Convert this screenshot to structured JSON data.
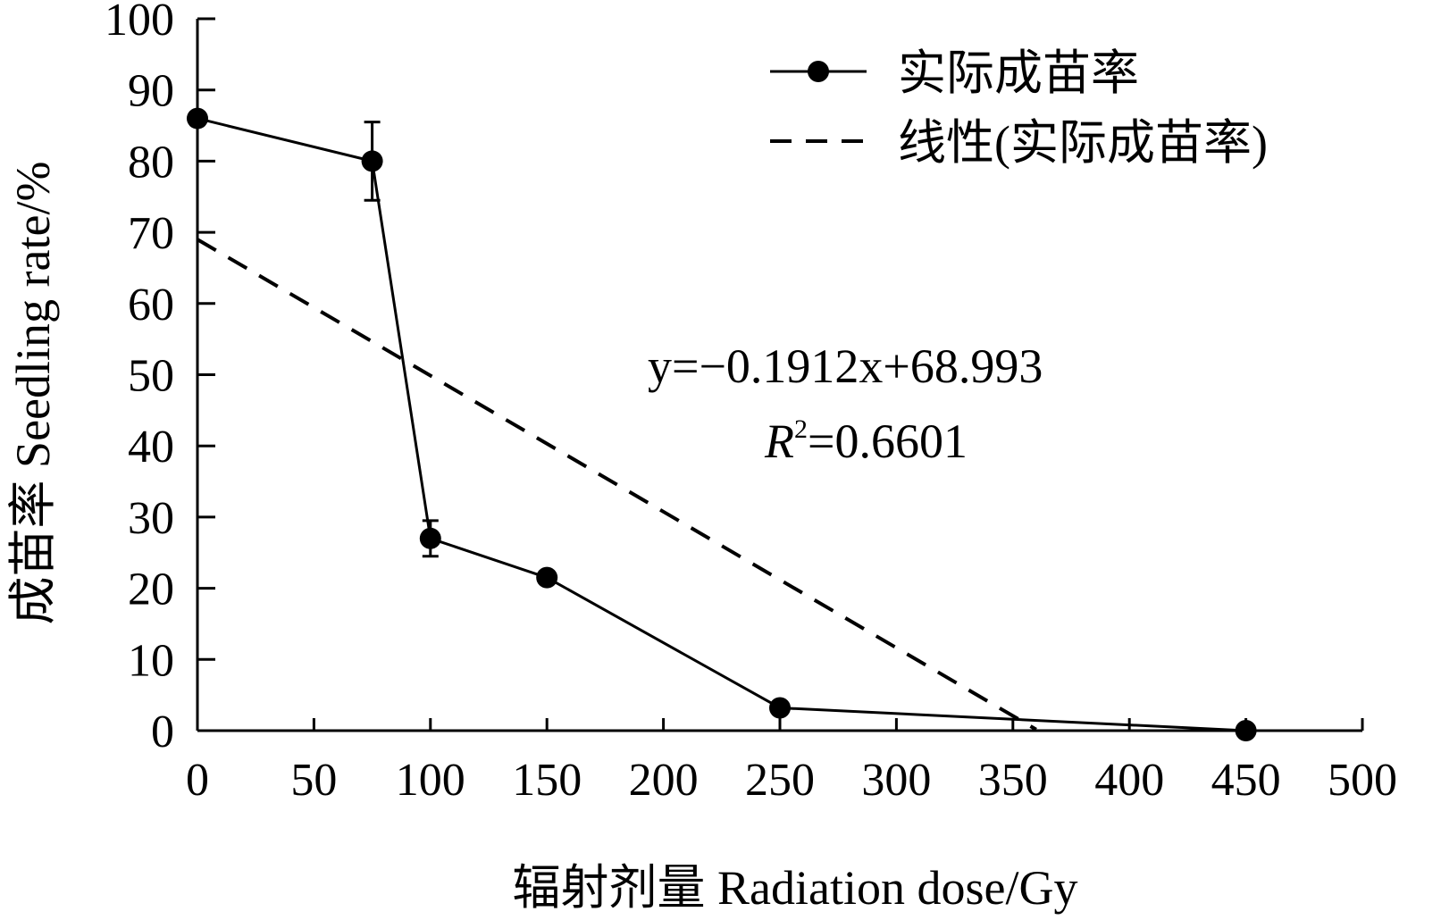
{
  "chart_data": {
    "type": "line",
    "xlabel": "辐射剂量 Radiation dose/Gy",
    "ylabel": "成苗率 Seedling rate/%",
    "xlim": [
      0,
      500
    ],
    "ylim": [
      0,
      100
    ],
    "x_ticks": [
      "0",
      "50",
      "100",
      "150",
      "200",
      "250",
      "300",
      "350",
      "400",
      "450",
      "500"
    ],
    "y_ticks": [
      "0",
      "10",
      "20",
      "30",
      "40",
      "50",
      "60",
      "70",
      "80",
      "90",
      "100"
    ],
    "grid": false,
    "legend_position": "top-right",
    "series": [
      {
        "name": "实际成苗率",
        "style": "solid-marker",
        "x": [
          0,
          75,
          100,
          150,
          250,
          450
        ],
        "y": [
          86,
          80,
          27,
          21.5,
          3.2,
          0
        ],
        "error": [
          0,
          5.5,
          2.5,
          0,
          0,
          0
        ]
      },
      {
        "name": "线性(实际成苗率)",
        "style": "dashed",
        "slope": -0.1912,
        "intercept": 68.993,
        "x_range": [
          0,
          360
        ]
      }
    ],
    "annotations": {
      "equation": "y=−0.1912x+68.993",
      "r2_symbol": "R",
      "r2_sup": "2",
      "r2_value": "=0.6601"
    },
    "colors": {
      "line": "#000000",
      "background": "#ffffff"
    }
  }
}
